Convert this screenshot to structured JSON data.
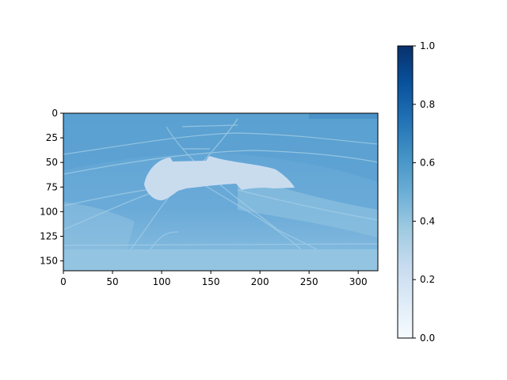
{
  "chart_data": {
    "type": "heatmap",
    "title": "",
    "xlabel": "",
    "ylabel": "",
    "image_size": [
      320,
      160
    ],
    "xlim": [
      0,
      320
    ],
    "ylim": [
      160,
      0
    ],
    "x_ticks": [
      0,
      50,
      100,
      150,
      200,
      250,
      300
    ],
    "y_ticks": [
      0,
      25,
      50,
      75,
      100,
      125,
      150
    ],
    "colormap": "Blues",
    "colorbar": {
      "range": [
        0.0,
        1.0
      ],
      "ticks": [
        "0.0",
        "0.2",
        "0.4",
        "0.6",
        "0.8",
        "1.0"
      ],
      "colors": [
        "#f7fbff",
        "#deebf7",
        "#c6dbef",
        "#9ecae1",
        "#6baed6",
        "#4292c6",
        "#2171b5",
        "#08519c",
        "#08306b"
      ]
    },
    "value_estimates": {
      "background": 0.5,
      "upper_region": 0.55,
      "lower_band": 0.38,
      "bright_shape": 0.22,
      "streaks": 0.42
    }
  }
}
